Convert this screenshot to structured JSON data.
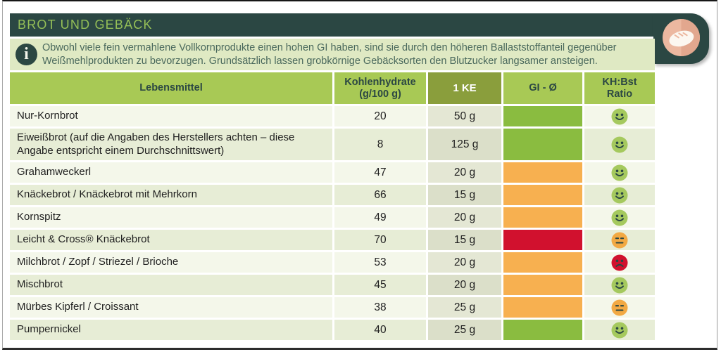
{
  "header": {
    "title": "BROT UND GEBÄCK",
    "category_icon": "bread-icon"
  },
  "info": {
    "icon": "info-icon",
    "text": "Obwohl viele fein vermahlene Vollkornprodukte einen hohen GI haben, sind sie durch den höheren Ballaststoffanteil gegenüber Weißmehlprodukten zu bevorzugen. Grundsätzlich lassen grobkörnige Gebäcksorten den Blutzucker langsamer ansteigen."
  },
  "table": {
    "columns": [
      {
        "label": "Lebensmittel"
      },
      {
        "label": "Kohlenhydrate",
        "sublabel": "(g/100 g)"
      },
      {
        "label": "1 KE"
      },
      {
        "label": "GI - Ø"
      },
      {
        "label": "KH:Bst",
        "sublabel": "Ratio"
      }
    ],
    "rows": [
      {
        "name": "Nur-Kornbrot",
        "carbs": "20",
        "ke": "50 g",
        "gi": "green",
        "ratio": "happy"
      },
      {
        "name": "Eiweißbrot (auf die Angaben des Herstellers achten – diese Angabe entspricht einem Durchschnittswert)",
        "carbs": "8",
        "ke": "125 g",
        "gi": "green",
        "ratio": "happy"
      },
      {
        "name": "Grahamweckerl",
        "carbs": "47",
        "ke": "20 g",
        "gi": "orange",
        "ratio": "happy"
      },
      {
        "name": "Knäckebrot / Knäckebrot mit Mehrkorn",
        "carbs": "66",
        "ke": "15 g",
        "gi": "orange",
        "ratio": "happy"
      },
      {
        "name": "Kornspitz",
        "carbs": "49",
        "ke": "20 g",
        "gi": "orange",
        "ratio": "happy"
      },
      {
        "name": "Leicht & Cross® Knäckebrot",
        "carbs": "70",
        "ke": "15 g",
        "gi": "red",
        "ratio": "neutral"
      },
      {
        "name": "Milchbrot / Zopf / Striezel / Brioche",
        "carbs": "53",
        "ke": "20 g",
        "gi": "orange",
        "ratio": "sad"
      },
      {
        "name": "Mischbrot",
        "carbs": "45",
        "ke": "20 g",
        "gi": "orange",
        "ratio": "happy"
      },
      {
        "name": "Mürbes Kipferl / Croissant",
        "carbs": "38",
        "ke": "25 g",
        "gi": "orange",
        "ratio": "neutral"
      },
      {
        "name": "Pumpernickel",
        "carbs": "40",
        "ke": "25 g",
        "gi": "green",
        "ratio": "happy"
      }
    ]
  },
  "colors": {
    "gi": {
      "green": "#8abc40",
      "orange": "#f7b050",
      "red": "#d1112e"
    },
    "ratio": {
      "happy": "#a5c95e",
      "neutral": "#f2a943",
      "sad": "#d1112e"
    },
    "face": "#2b4743",
    "accent_dark": "#2b4743",
    "accent_green": "#a8c955"
  }
}
